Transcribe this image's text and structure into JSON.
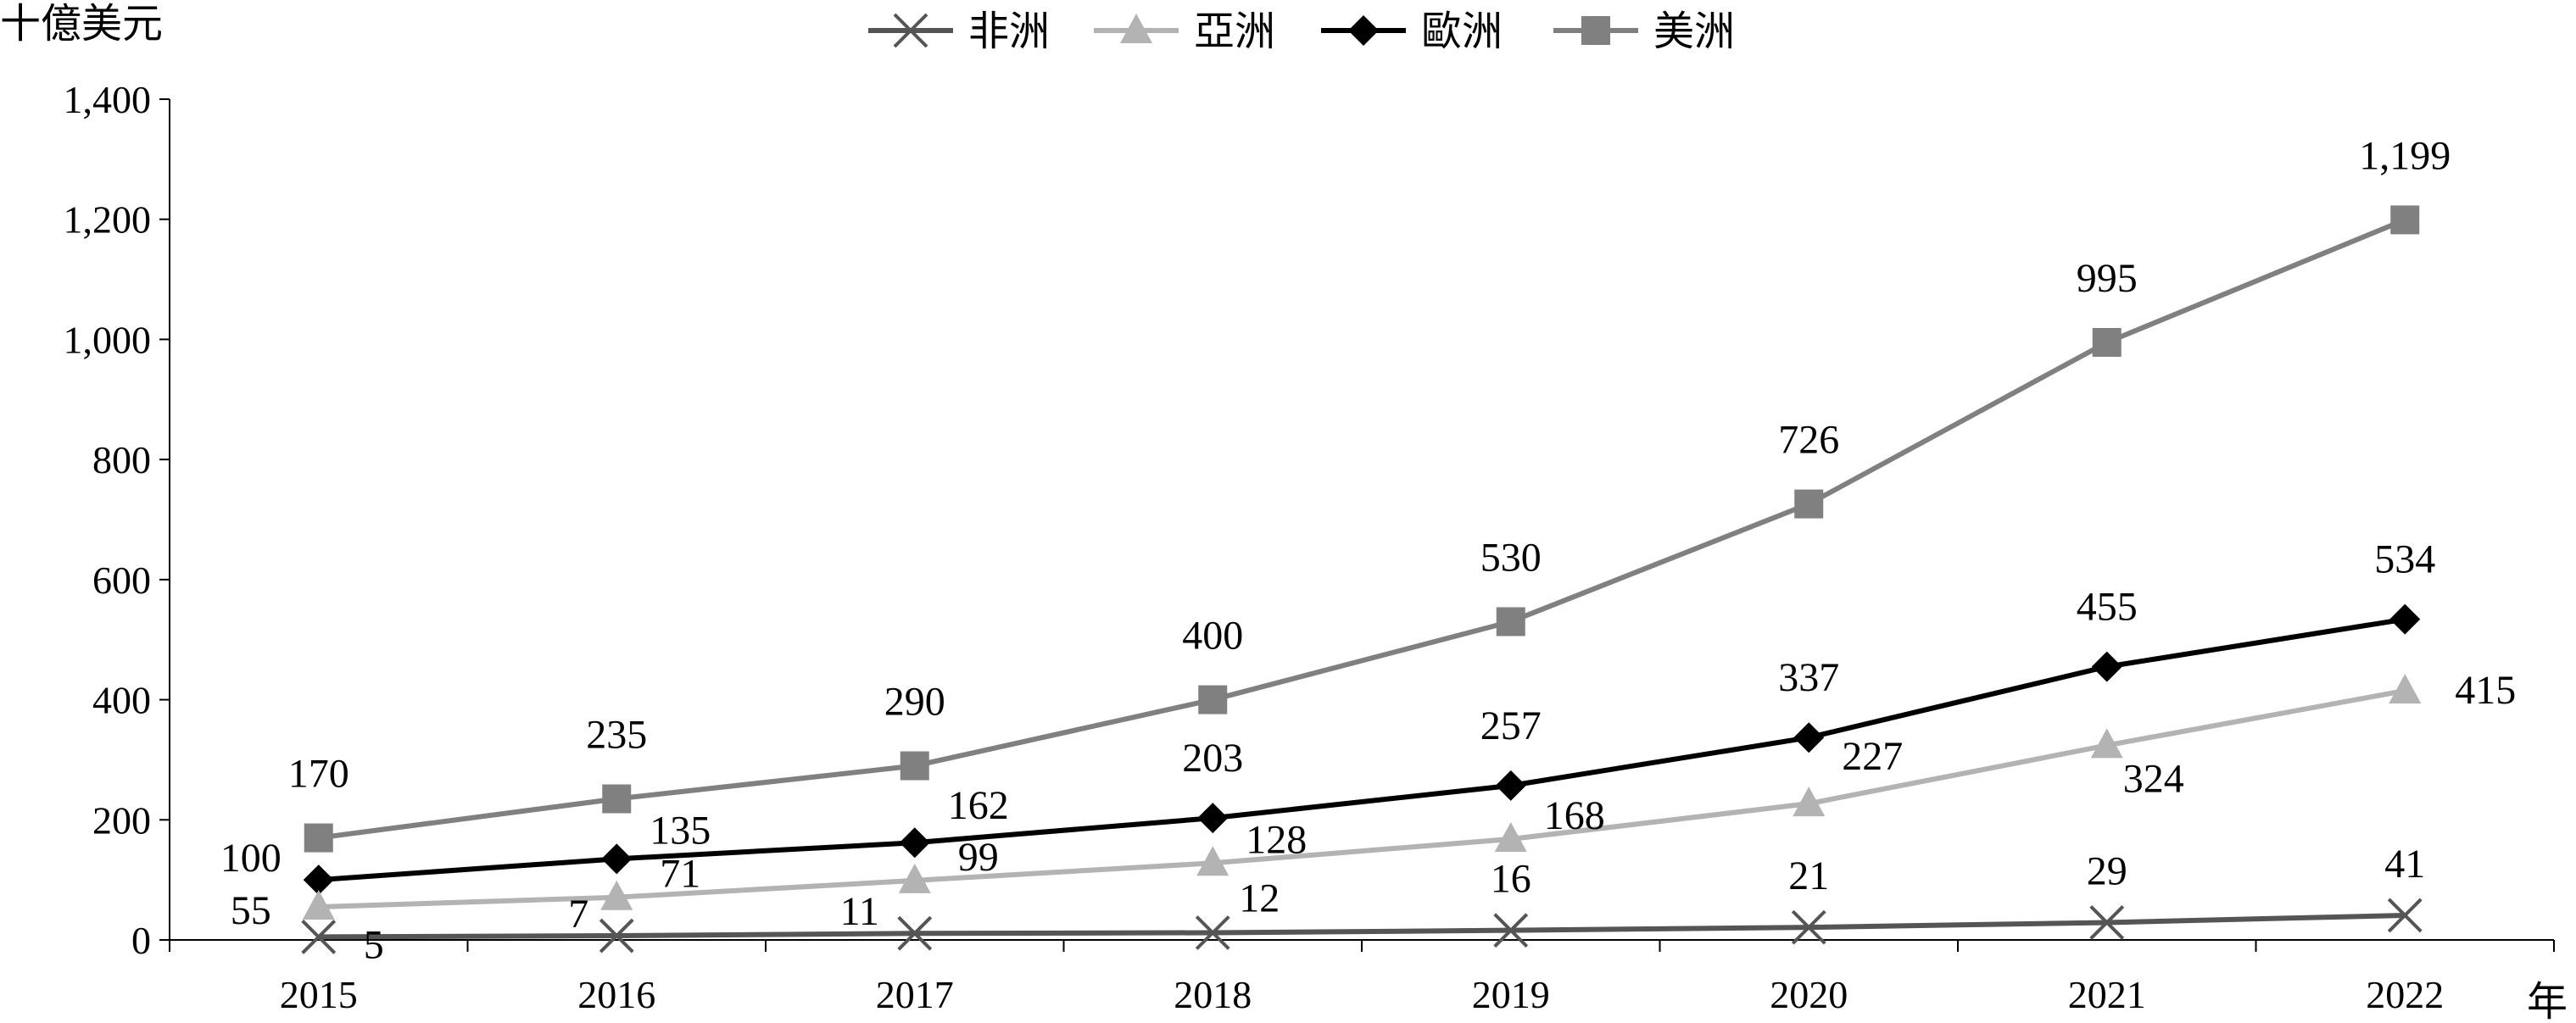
{
  "chart_data": {
    "type": "line",
    "title": "",
    "xlabel": "年",
    "ylabel": "十億美元",
    "categories": [
      "2015",
      "2016",
      "2017",
      "2018",
      "2019",
      "2020",
      "2021",
      "2022"
    ],
    "ylim": [
      0,
      1400
    ],
    "yticks": [
      0,
      200,
      400,
      600,
      800,
      1000,
      1200,
      1400
    ],
    "ytick_labels": [
      "0",
      "200",
      "400",
      "600",
      "800",
      "1,000",
      "1,200",
      "1,400"
    ],
    "grid": false,
    "legend_position": "top-center",
    "series": [
      {
        "name": "非洲",
        "values": [
          5,
          7,
          11,
          12,
          16,
          21,
          29,
          41
        ],
        "labels": [
          "5",
          "7",
          "11",
          "12",
          "16",
          "21",
          "29",
          "41"
        ],
        "marker": "x",
        "color": "#555555"
      },
      {
        "name": "亞洲",
        "values": [
          55,
          71,
          99,
          128,
          168,
          227,
          324,
          415
        ],
        "labels": [
          "55",
          "71",
          "99",
          "128",
          "168",
          "227",
          "324",
          "415"
        ],
        "marker": "triangle",
        "color": "#b3b3b3"
      },
      {
        "name": "歐洲",
        "values": [
          100,
          135,
          162,
          203,
          257,
          337,
          455,
          534
        ],
        "labels": [
          "100",
          "135",
          "162",
          "203",
          "257",
          "337",
          "455",
          "534"
        ],
        "marker": "diamond",
        "color": "#000000"
      },
      {
        "name": "美洲",
        "values": [
          170,
          235,
          290,
          400,
          530,
          726,
          995,
          1199
        ],
        "labels": [
          "170",
          "235",
          "290",
          "400",
          "530",
          "726",
          "995",
          "1,199"
        ],
        "marker": "square",
        "color": "#808080"
      }
    ]
  }
}
